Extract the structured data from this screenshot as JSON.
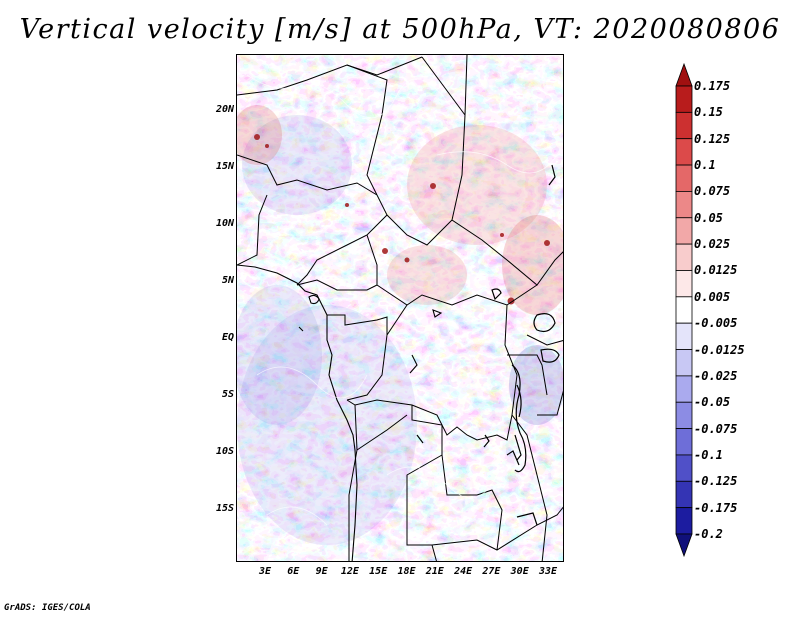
{
  "title": "Vertical velocity [m/s] at 500hPa, VT: 2020080806",
  "footer": "GrADS: IGES/COLA",
  "map": {
    "variable": "Vertical velocity",
    "units": "m/s",
    "level": "500hPa",
    "valid_time": "2020080806",
    "lat_labels": [
      "20N",
      "15N",
      "10N",
      "5N",
      "EQ",
      "5S",
      "10S",
      "15S"
    ],
    "lon_labels": [
      "3E",
      "6E",
      "9E",
      "12E",
      "15E",
      "18E",
      "21E",
      "24E",
      "27E",
      "30E",
      "33E"
    ]
  },
  "colorbar": {
    "labels": [
      "0.175",
      "0.15",
      "0.125",
      "0.1",
      "0.075",
      "0.05",
      "0.025",
      "0.0125",
      "0.005",
      "-0.005",
      "-0.0125",
      "-0.025",
      "-0.05",
      "-0.075",
      "-0.1",
      "-0.125",
      "-0.175",
      "-0.2"
    ],
    "colors": [
      "#a01010",
      "#b81c1c",
      "#cc3030",
      "#dc4a4a",
      "#e46868",
      "#ec8888",
      "#f2a8a8",
      "#f8cccc",
      "#fde8e8",
      "#ffffff",
      "#e4e4fa",
      "#c8c8f4",
      "#aaaaee",
      "#8c8ce4",
      "#6e6ed8",
      "#5050c8",
      "#3434b4",
      "#1c1ca0",
      "#10107a"
    ]
  }
}
